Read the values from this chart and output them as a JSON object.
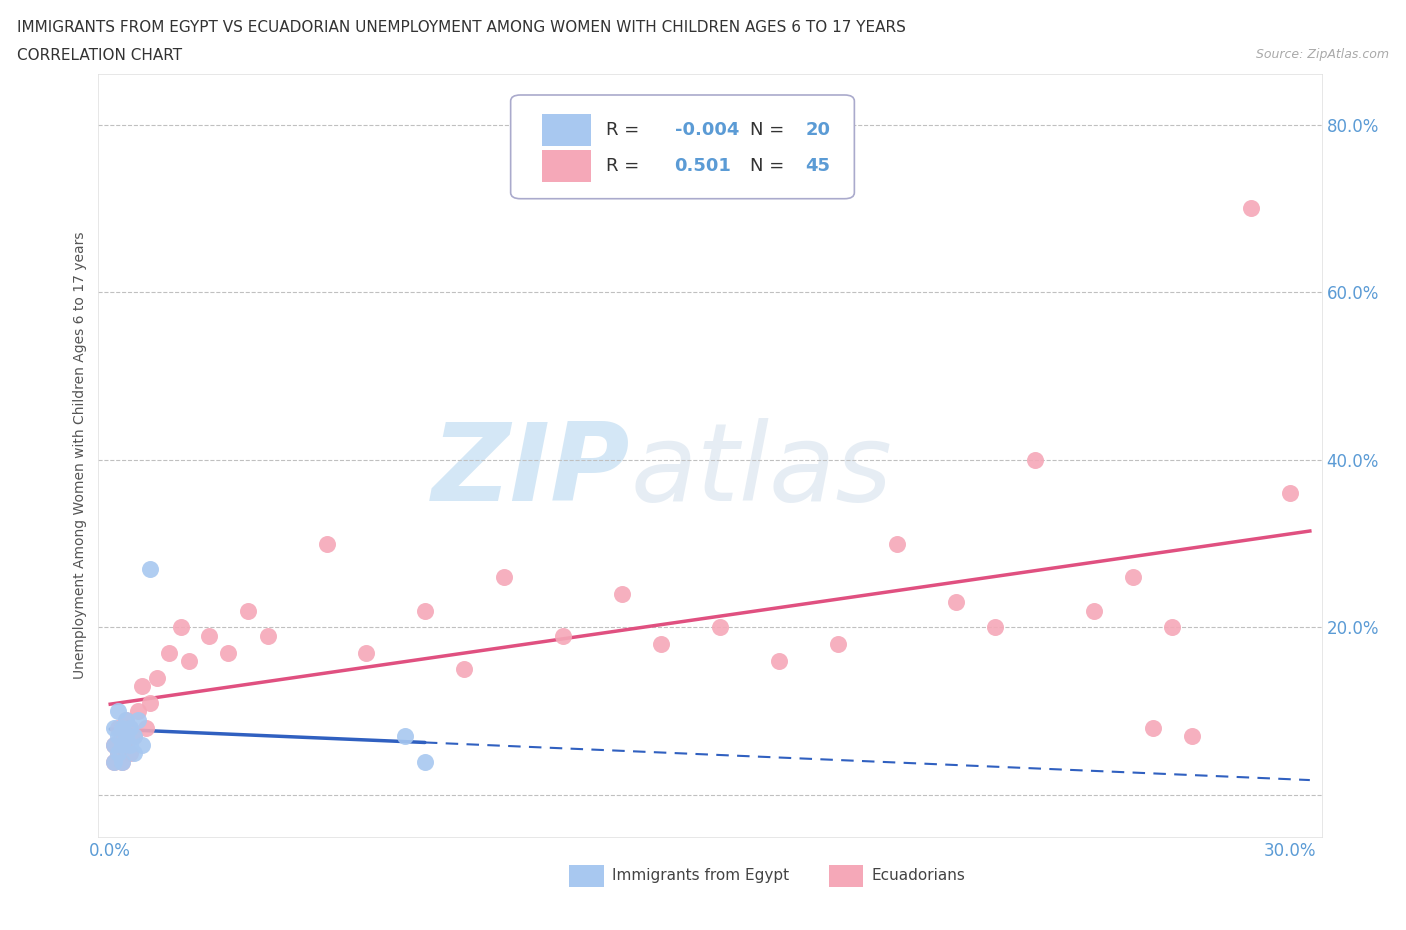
{
  "title_line1": "IMMIGRANTS FROM EGYPT VS ECUADORIAN UNEMPLOYMENT AMONG WOMEN WITH CHILDREN AGES 6 TO 17 YEARS",
  "title_line2": "CORRELATION CHART",
  "source_text": "Source: ZipAtlas.com",
  "ylabel": "Unemployment Among Women with Children Ages 6 to 17 years",
  "xlim": [
    -0.003,
    0.308
  ],
  "ylim": [
    -0.05,
    0.86
  ],
  "background_color": "#ffffff",
  "color_egypt": "#a8c8f0",
  "color_ecuador": "#f5a8b8",
  "color_trendline_egypt": "#3060c0",
  "color_trendline_ecuador": "#e05080",
  "color_axis_labels": "#5b9bd5",
  "color_grid": "#c0c0c0",
  "legend_R1": "-0.004",
  "legend_N1": "20",
  "legend_R2": "0.501",
  "legend_N2": "45",
  "egypt_x": [
    0.001,
    0.001,
    0.001,
    0.002,
    0.002,
    0.002,
    0.003,
    0.003,
    0.003,
    0.004,
    0.004,
    0.005,
    0.005,
    0.006,
    0.006,
    0.007,
    0.008,
    0.01,
    0.075,
    0.08
  ],
  "egypt_y": [
    0.04,
    0.06,
    0.08,
    0.05,
    0.07,
    0.1,
    0.04,
    0.06,
    0.08,
    0.07,
    0.09,
    0.06,
    0.08,
    0.05,
    0.07,
    0.09,
    0.06,
    0.27,
    0.07,
    0.04
  ],
  "ecuador_x": [
    0.001,
    0.001,
    0.002,
    0.002,
    0.003,
    0.003,
    0.004,
    0.004,
    0.005,
    0.005,
    0.006,
    0.007,
    0.008,
    0.009,
    0.01,
    0.012,
    0.015,
    0.018,
    0.02,
    0.025,
    0.03,
    0.035,
    0.04,
    0.055,
    0.065,
    0.08,
    0.09,
    0.1,
    0.115,
    0.13,
    0.14,
    0.155,
    0.17,
    0.185,
    0.2,
    0.215,
    0.225,
    0.235,
    0.25,
    0.26,
    0.265,
    0.27,
    0.275,
    0.29,
    0.3
  ],
  "ecuador_y": [
    0.04,
    0.06,
    0.05,
    0.08,
    0.04,
    0.07,
    0.06,
    0.09,
    0.05,
    0.08,
    0.07,
    0.1,
    0.13,
    0.08,
    0.11,
    0.14,
    0.17,
    0.2,
    0.16,
    0.19,
    0.17,
    0.22,
    0.19,
    0.3,
    0.17,
    0.22,
    0.15,
    0.26,
    0.19,
    0.24,
    0.18,
    0.2,
    0.16,
    0.18,
    0.3,
    0.23,
    0.2,
    0.4,
    0.22,
    0.26,
    0.08,
    0.2,
    0.07,
    0.7,
    0.36
  ]
}
